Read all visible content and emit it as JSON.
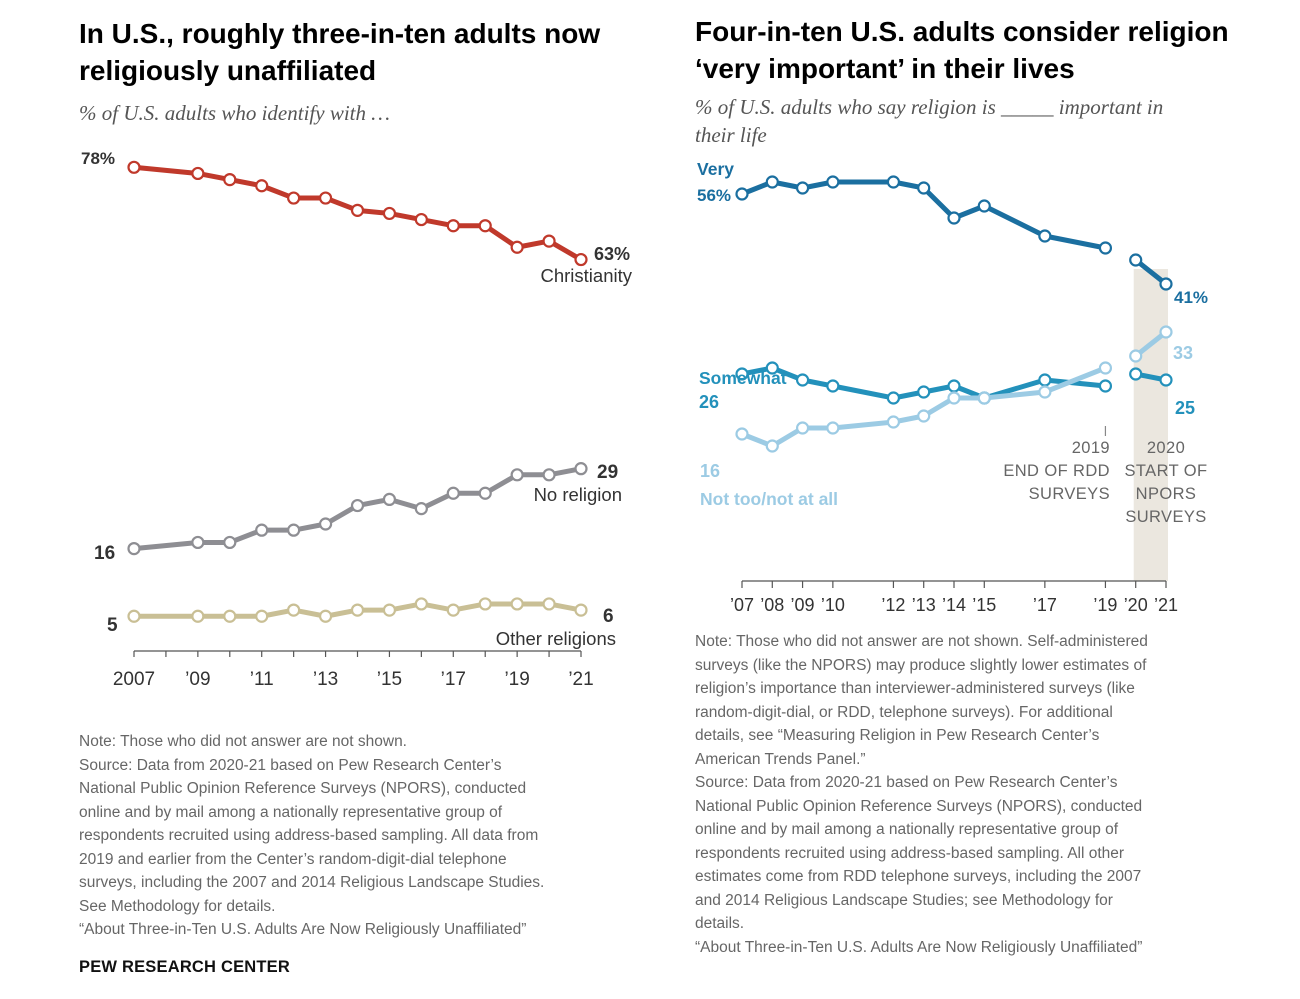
{
  "left": {
    "title_line1": "In U.S., roughly three-in-ten adults now",
    "title_line2": "religiously unaffiliated",
    "subtitle": "% of U.S. adults who identify with …",
    "note": "Note: Those who did not answer are not shown.",
    "source_lines": [
      "Source: Data from 2020-21 based on Pew Research Center’s",
      "National Public Opinion Reference Surveys (NPORS), conducted",
      "online and by mail among a nationally representative group of",
      "respondents recruited using address-based sampling. All data from",
      "2019 and earlier from the Center’s random-digit-dial telephone",
      "surveys, including the 2007 and 2014 Religious Landscape Studies.",
      "See Methodology for details.",
      "“About Three-in-Ten U.S. Adults Are Now Religiously Unaffiliated”"
    ]
  },
  "right": {
    "title_line1": "Four-in-ten U.S. adults consider religion",
    "title_line2": "‘very important’ in their lives",
    "subtitle_line1": "% of U.S. adults who say religion is _____ important in",
    "subtitle_line2": "their life",
    "note_lines": [
      "Note: Those who did not answer are not shown. Self-administered",
      "surveys (like the NPORS) may produce slightly lower estimates of",
      "religion’s importance than interviewer-administered surveys (like",
      "random-digit-dial, or RDD, telephone surveys). For additional",
      "details, see “Measuring Religion in Pew Research Center’s",
      "American Trends Panel.”",
      "Source: Data from 2020-21 based on Pew Research Center’s",
      "National Public Opinion Reference Surveys (NPORS), conducted",
      "online and by mail among a nationally representative group of",
      "respondents recruited using address-based sampling. All other",
      "estimates come from RDD telephone surveys, including the 2007",
      "and 2014 Religious Landscape Studies; see Methodology for",
      "details.",
      "“About Three-in-Ten U.S. Adults Are Now Religiously Unaffiliated”"
    ]
  },
  "brand": "PEW RESEARCH CENTER",
  "chart_data": [
    {
      "type": "line",
      "x": [
        2007,
        2009,
        2010,
        2011,
        2012,
        2013,
        2014,
        2015,
        2016,
        2017,
        2018,
        2019,
        2020,
        2021
      ],
      "xtick_values": [
        2007,
        2009,
        2011,
        2013,
        2015,
        2017,
        2019,
        2021
      ],
      "xtick_labels": [
        "2007",
        "’09",
        "’11",
        "’13",
        "’15",
        "’17",
        "’19",
        "’21"
      ],
      "ylim": [
        0,
        80
      ],
      "grid": false,
      "legend": "none (series labels next to lines)",
      "series": [
        {
          "name": "Christianity",
          "color": "#c0392b",
          "values": [
            78,
            77,
            76,
            75,
            73,
            73,
            71,
            70.5,
            69.5,
            68.5,
            68.5,
            65,
            66,
            63
          ],
          "start_label": "78%",
          "end_label": "63%"
        },
        {
          "name": "No religion",
          "color": "#8e8e93",
          "values": [
            16,
            17,
            17,
            19,
            19,
            20,
            23,
            24,
            22.5,
            25,
            25,
            28,
            28,
            29
          ],
          "start_label": "16",
          "end_label": "29"
        },
        {
          "name": "Other religions",
          "color": "#c9bf95",
          "values": [
            5,
            5,
            5,
            5,
            6,
            5,
            6,
            6,
            7,
            6,
            7,
            7,
            7,
            6
          ],
          "start_label": "5",
          "end_label": "6"
        }
      ]
    },
    {
      "type": "line",
      "xtick_values": [
        2007,
        2008,
        2009,
        2010,
        2012,
        2013,
        2014,
        2015,
        2017,
        2019,
        2020,
        2021
      ],
      "xtick_labels": [
        "’07",
        "’08",
        "’09",
        "’10",
        "’12",
        "’13",
        "’14",
        "’15",
        "’17",
        "’19",
        "’20",
        "’21"
      ],
      "ylim": [
        0,
        60
      ],
      "grid": false,
      "shaded_region": [
        2020,
        2021
      ],
      "annotations": {
        "rdd": [
          "2019",
          "END OF RDD",
          "SURVEYS"
        ],
        "npors": [
          "2020",
          "START OF",
          "NPORS",
          "SURVEYS"
        ]
      },
      "series": [
        {
          "name": "Very",
          "color": "#1b6fa0",
          "rdd_x": [
            2007,
            2008,
            2009,
            2010,
            2012,
            2013,
            2014,
            2015,
            2017,
            2019
          ],
          "rdd_values": [
            56,
            58,
            57,
            58,
            58,
            57,
            52,
            54,
            49,
            47
          ],
          "npors_x": [
            2020,
            2021
          ],
          "npors_values": [
            45,
            41
          ],
          "start_label": "56%",
          "end_label": "41%"
        },
        {
          "name": "Somewhat",
          "color": "#2391bb",
          "rdd_x": [
            2007,
            2008,
            2009,
            2010,
            2012,
            2013,
            2014,
            2015,
            2017,
            2019
          ],
          "rdd_values": [
            26,
            27,
            25,
            24,
            22,
            23,
            24,
            22,
            25,
            24
          ],
          "npors_x": [
            2020,
            2021
          ],
          "npors_values": [
            26,
            25
          ],
          "start_label": "26",
          "end_label": "25"
        },
        {
          "name": "Not too/not at all",
          "color": "#9ccbe4",
          "rdd_x": [
            2007,
            2008,
            2009,
            2010,
            2012,
            2013,
            2014,
            2015,
            2017,
            2019
          ],
          "rdd_values": [
            16,
            14,
            17,
            17,
            18,
            19,
            22,
            22,
            23,
            27
          ],
          "npors_x": [
            2020,
            2021
          ],
          "npors_values": [
            29,
            33
          ],
          "start_label": "16",
          "end_label": "33"
        }
      ]
    }
  ]
}
